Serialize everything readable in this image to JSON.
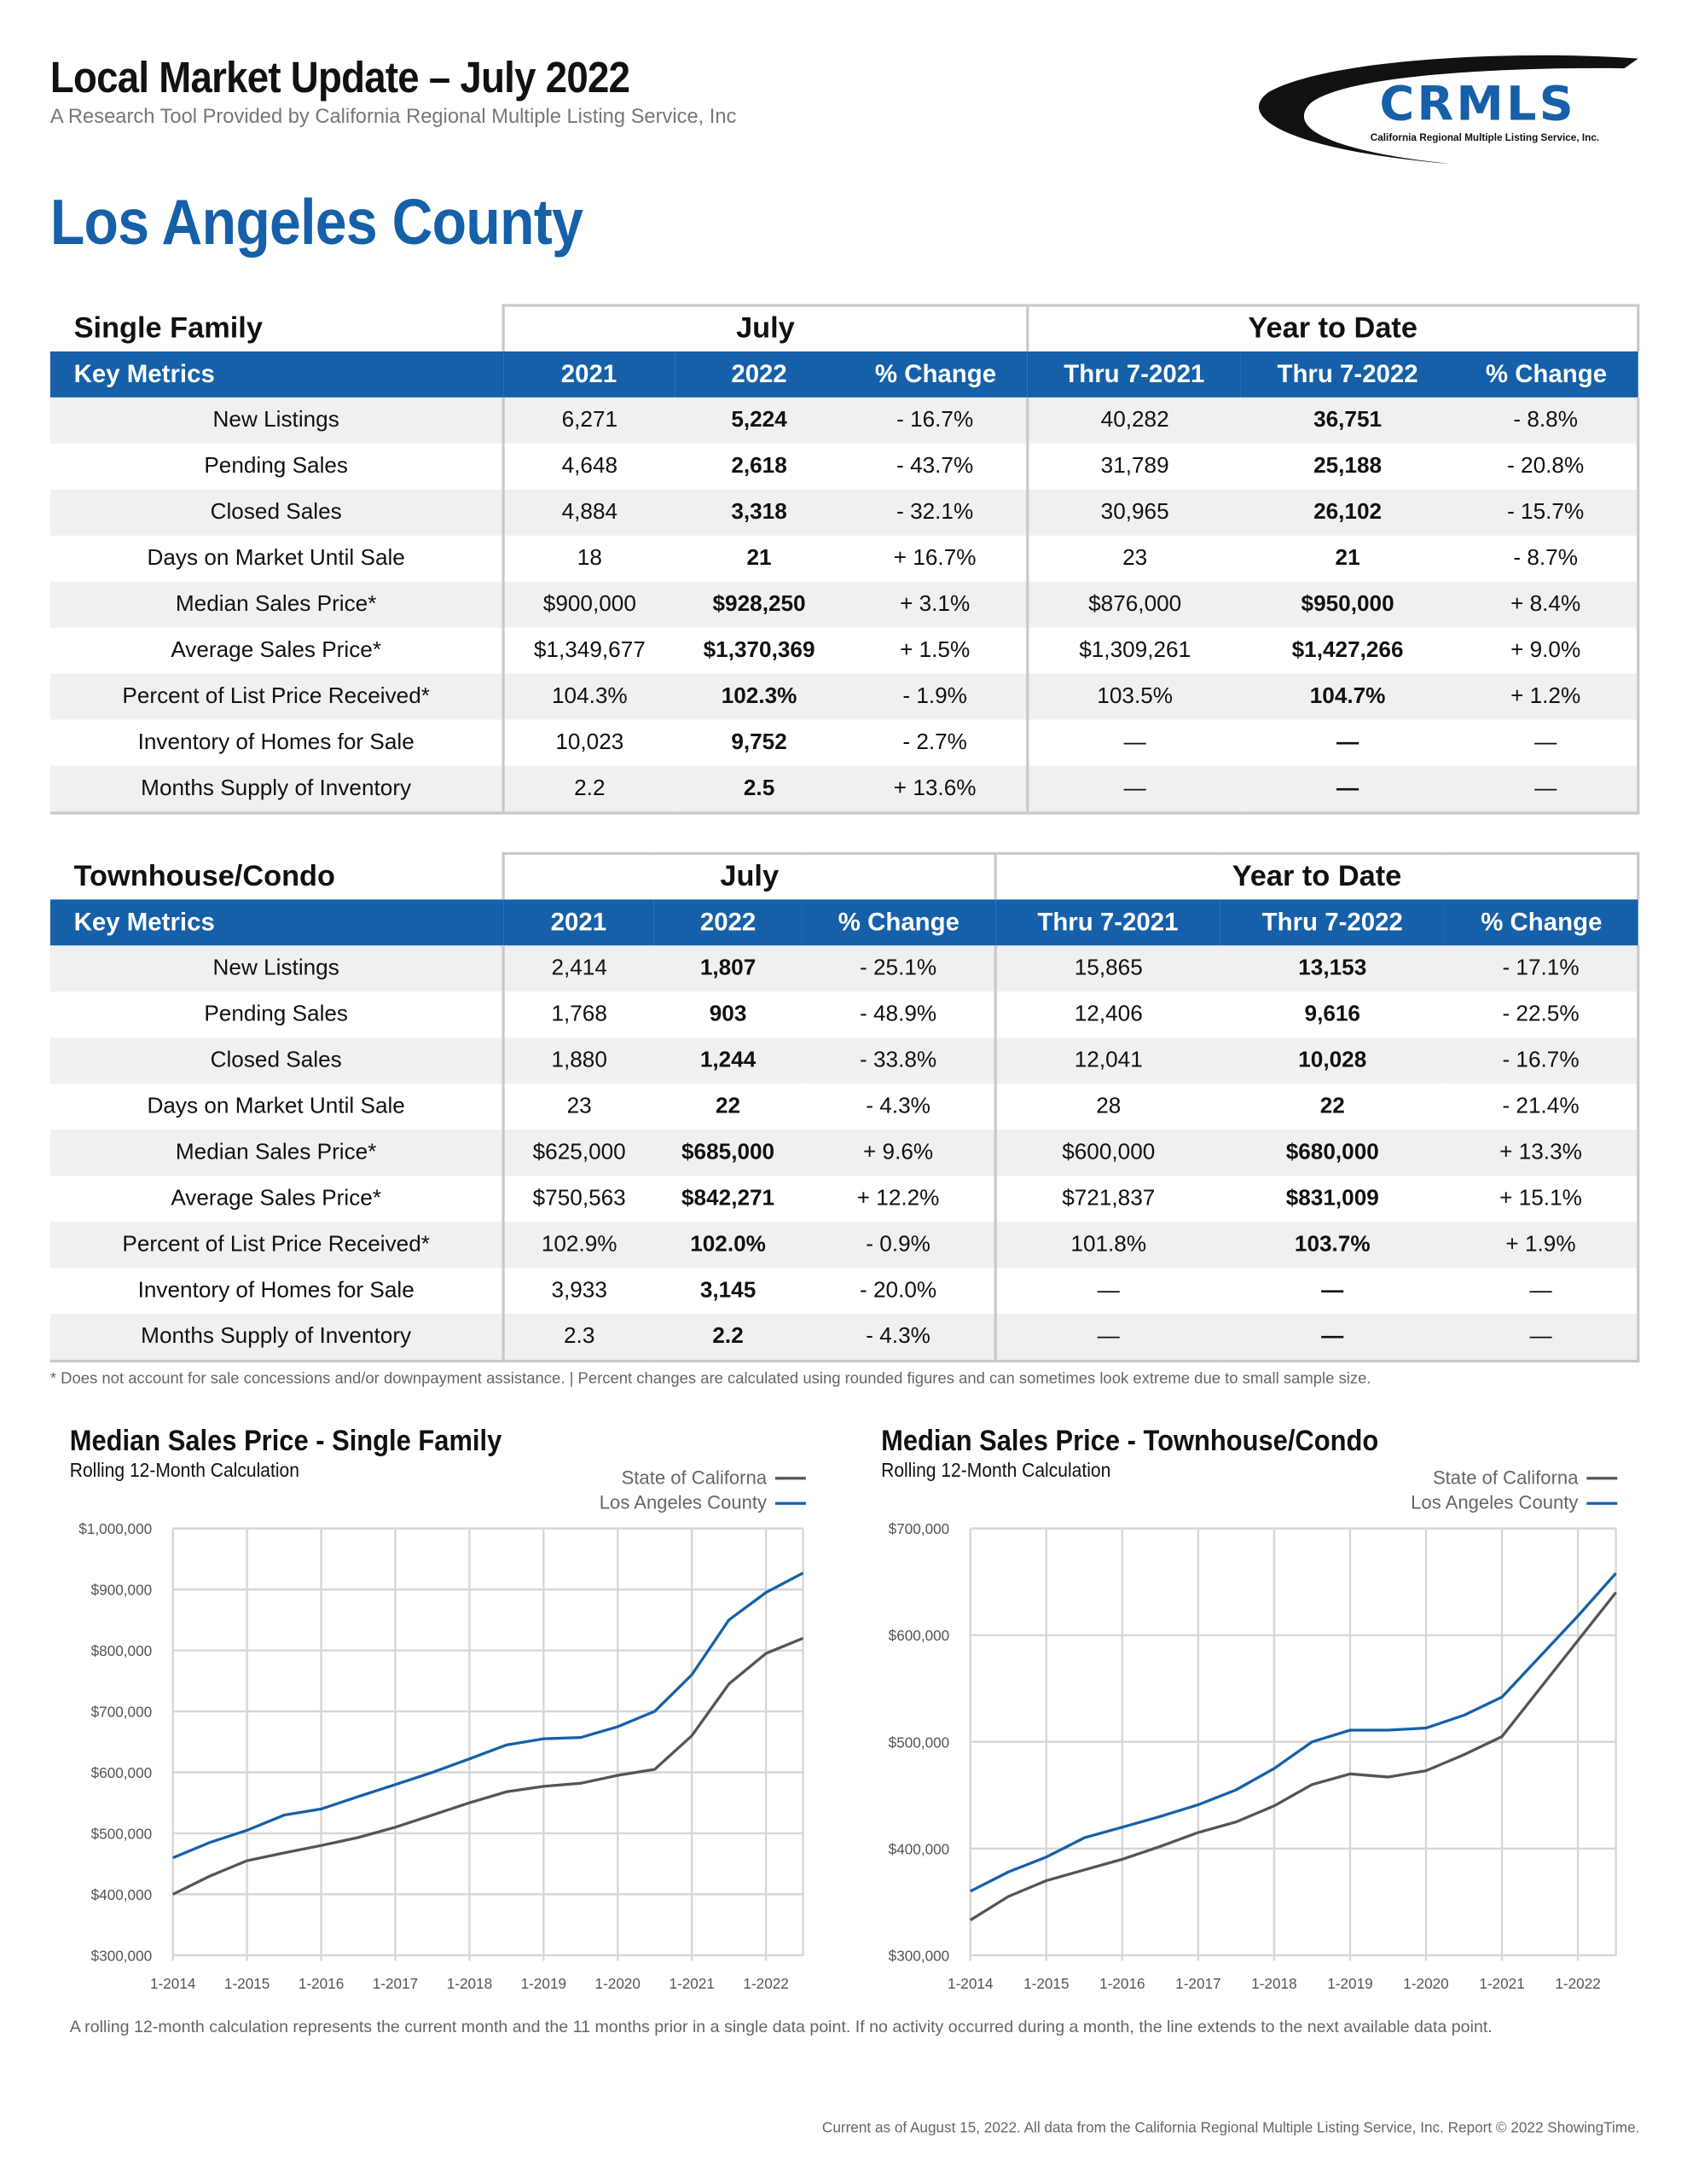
{
  "header": {
    "title": "Local Market Update – July 2022",
    "subtitle": "A Research Tool Provided by California Regional Multiple Listing Service, Inc",
    "county": "Los Angeles County",
    "logo": {
      "text": "CRMLS",
      "tagline": "California Regional Multiple Listing Service, Inc.",
      "color": "#1560a8"
    }
  },
  "columns": {
    "key_metrics": "Key Metrics",
    "month_group": "July",
    "ytd_group": "Year to Date",
    "headers": [
      "2021",
      "2022",
      "% Change",
      "Thru 7-2021",
      "Thru 7-2022",
      "% Change"
    ]
  },
  "tables": [
    {
      "section": "Single Family",
      "rows": [
        {
          "metric": "New Listings",
          "values": [
            "6,271",
            "5,224",
            "- 16.7%",
            "40,282",
            "36,751",
            "- 8.8%"
          ]
        },
        {
          "metric": "Pending Sales",
          "values": [
            "4,648",
            "2,618",
            "- 43.7%",
            "31,789",
            "25,188",
            "- 20.8%"
          ]
        },
        {
          "metric": "Closed Sales",
          "values": [
            "4,884",
            "3,318",
            "- 32.1%",
            "30,965",
            "26,102",
            "- 15.7%"
          ]
        },
        {
          "metric": "Days on Market Until Sale",
          "values": [
            "18",
            "21",
            "+ 16.7%",
            "23",
            "21",
            "- 8.7%"
          ]
        },
        {
          "metric": "Median Sales Price*",
          "values": [
            "$900,000",
            "$928,250",
            "+ 3.1%",
            "$876,000",
            "$950,000",
            "+ 8.4%"
          ]
        },
        {
          "metric": "Average Sales Price*",
          "values": [
            "$1,349,677",
            "$1,370,369",
            "+ 1.5%",
            "$1,309,261",
            "$1,427,266",
            "+ 9.0%"
          ]
        },
        {
          "metric": "Percent of List Price Received*",
          "values": [
            "104.3%",
            "102.3%",
            "- 1.9%",
            "103.5%",
            "104.7%",
            "+ 1.2%"
          ]
        },
        {
          "metric": "Inventory of Homes for Sale",
          "values": [
            "10,023",
            "9,752",
            "- 2.7%",
            "—",
            "—",
            "—"
          ]
        },
        {
          "metric": "Months Supply of Inventory",
          "values": [
            "2.2",
            "2.5",
            "+ 13.6%",
            "—",
            "—",
            "—"
          ]
        }
      ]
    },
    {
      "section": "Townhouse/Condo",
      "rows": [
        {
          "metric": "New Listings",
          "values": [
            "2,414",
            "1,807",
            "- 25.1%",
            "15,865",
            "13,153",
            "- 17.1%"
          ]
        },
        {
          "metric": "Pending Sales",
          "values": [
            "1,768",
            "903",
            "- 48.9%",
            "12,406",
            "9,616",
            "- 22.5%"
          ]
        },
        {
          "metric": "Closed Sales",
          "values": [
            "1,880",
            "1,244",
            "- 33.8%",
            "12,041",
            "10,028",
            "- 16.7%"
          ]
        },
        {
          "metric": "Days on Market Until Sale",
          "values": [
            "23",
            "22",
            "- 4.3%",
            "28",
            "22",
            "- 21.4%"
          ]
        },
        {
          "metric": "Median Sales Price*",
          "values": [
            "$625,000",
            "$685,000",
            "+ 9.6%",
            "$600,000",
            "$680,000",
            "+ 13.3%"
          ]
        },
        {
          "metric": "Average Sales Price*",
          "values": [
            "$750,563",
            "$842,271",
            "+ 12.2%",
            "$721,837",
            "$831,009",
            "+ 15.1%"
          ]
        },
        {
          "metric": "Percent of List Price Received*",
          "values": [
            "102.9%",
            "102.0%",
            "- 0.9%",
            "101.8%",
            "103.7%",
            "+ 1.9%"
          ]
        },
        {
          "metric": "Inventory of Homes for Sale",
          "values": [
            "3,933",
            "3,145",
            "- 20.0%",
            "—",
            "—",
            "—"
          ]
        },
        {
          "metric": "Months Supply of Inventory",
          "values": [
            "2.3",
            "2.2",
            "- 4.3%",
            "—",
            "—",
            "—"
          ]
        }
      ]
    }
  ],
  "footnote": "* Does not account for sale concessions and/or downpayment assistance. | Percent changes are calculated using rounded figures and can sometimes look extreme due to small sample size.",
  "chart_data": [
    {
      "type": "line",
      "title": "Median Sales Price - Single Family",
      "subtitle": "Rolling 12-Month Calculation",
      "x": [
        "1-2014",
        "7-2014",
        "1-2015",
        "7-2015",
        "1-2016",
        "7-2016",
        "1-2017",
        "7-2017",
        "1-2018",
        "7-2018",
        "1-2019",
        "7-2019",
        "1-2020",
        "7-2020",
        "1-2021",
        "7-2021",
        "1-2022",
        "7-2022"
      ],
      "x_ticks": [
        "1-2014",
        "1-2015",
        "1-2016",
        "1-2017",
        "1-2018",
        "1-2019",
        "1-2020",
        "1-2021",
        "1-2022"
      ],
      "y_ticks": [
        "$300,000",
        "$400,000",
        "$500,000",
        "$600,000",
        "$700,000",
        "$800,000",
        "$900,000",
        "$1,000,000"
      ],
      "y_tick_values": [
        300000,
        400000,
        500000,
        600000,
        700000,
        800000,
        900000,
        1000000
      ],
      "ylim": [
        300000,
        1000000
      ],
      "grid": true,
      "legend": "top-right",
      "series": [
        {
          "name": "State of Californa",
          "color": "#555555",
          "values": [
            400000,
            430000,
            455000,
            468000,
            480000,
            493000,
            510000,
            530000,
            550000,
            568000,
            577000,
            582000,
            595000,
            605000,
            660000,
            745000,
            795000,
            820000
          ]
        },
        {
          "name": "Los Angeles County",
          "color": "#1560a8",
          "values": [
            460000,
            485000,
            505000,
            530000,
            540000,
            560000,
            580000,
            600000,
            622000,
            645000,
            655000,
            657000,
            675000,
            700000,
            760000,
            850000,
            895000,
            927000
          ]
        }
      ]
    },
    {
      "type": "line",
      "title": "Median Sales Price - Townhouse/Condo",
      "subtitle": "Rolling 12-Month Calculation",
      "x": [
        "1-2014",
        "7-2014",
        "1-2015",
        "7-2015",
        "1-2016",
        "7-2016",
        "1-2017",
        "7-2017",
        "1-2018",
        "7-2018",
        "1-2019",
        "7-2019",
        "1-2020",
        "7-2020",
        "1-2021",
        "7-2021",
        "1-2022",
        "7-2022"
      ],
      "x_ticks": [
        "1-2014",
        "1-2015",
        "1-2016",
        "1-2017",
        "1-2018",
        "1-2019",
        "1-2020",
        "1-2021",
        "1-2022"
      ],
      "y_ticks": [
        "$300,000",
        "$400,000",
        "$500,000",
        "$600,000",
        "$700,000"
      ],
      "y_tick_values": [
        300000,
        400000,
        500000,
        600000,
        700000
      ],
      "ylim": [
        300000,
        700000
      ],
      "grid": true,
      "legend": "top-right",
      "series": [
        {
          "name": "State of Californa",
          "color": "#555555",
          "values": [
            333000,
            355000,
            370000,
            380000,
            390000,
            402000,
            415000,
            425000,
            440000,
            460000,
            470000,
            467000,
            473000,
            488000,
            505000,
            550000,
            595000,
            640000
          ]
        },
        {
          "name": "Los Angeles County",
          "color": "#1560a8",
          "values": [
            360000,
            378000,
            392000,
            410000,
            420000,
            430000,
            441000,
            455000,
            475000,
            500000,
            511000,
            511000,
            513000,
            525000,
            542000,
            580000,
            618000,
            658000
          ]
        }
      ]
    }
  ],
  "rolling_note": "A rolling 12-month calculation represents the current month and the 11 months prior in a single data point. If no activity occurred during a month, the line extends to the next available data point.",
  "current_note": "Current as of August 15, 2022. All data from the California Regional Multiple Listing Service, Inc. Report © 2022 ShowingTime."
}
